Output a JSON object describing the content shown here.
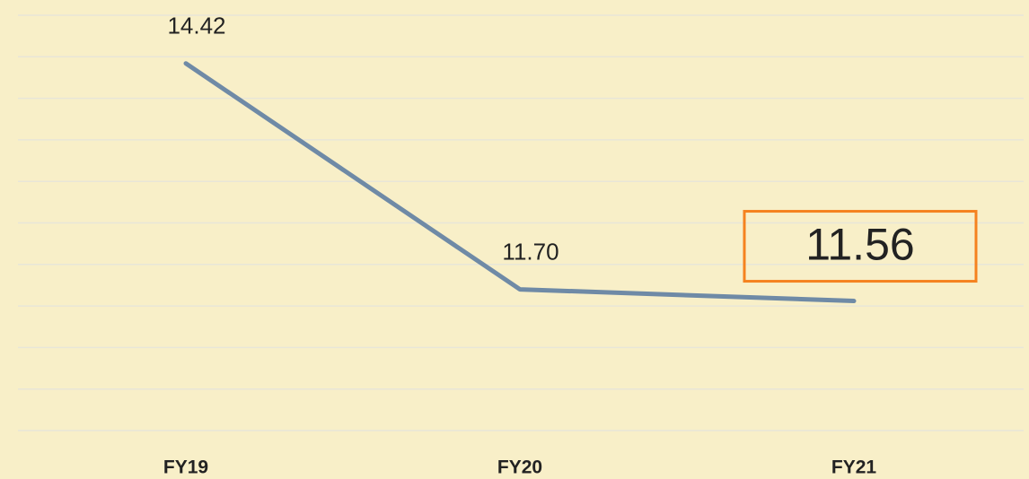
{
  "chart_data": {
    "type": "line",
    "categories": [
      "FY19",
      "FY20",
      "FY21"
    ],
    "series": [
      {
        "color": "#6f8aa6",
        "values": [
          14.42,
          11.7,
          11.56
        ],
        "value_labels": [
          "14.42",
          "11.70",
          "11.56"
        ]
      }
    ],
    "ylim": [
      10,
      15
    ],
    "yticks": [
      10,
      10.5,
      11,
      11.5,
      12,
      12.5,
      13,
      13.5,
      14,
      14.5,
      15
    ],
    "grid": true,
    "highlight_index": 2,
    "highlight_color": "#f5821f"
  }
}
